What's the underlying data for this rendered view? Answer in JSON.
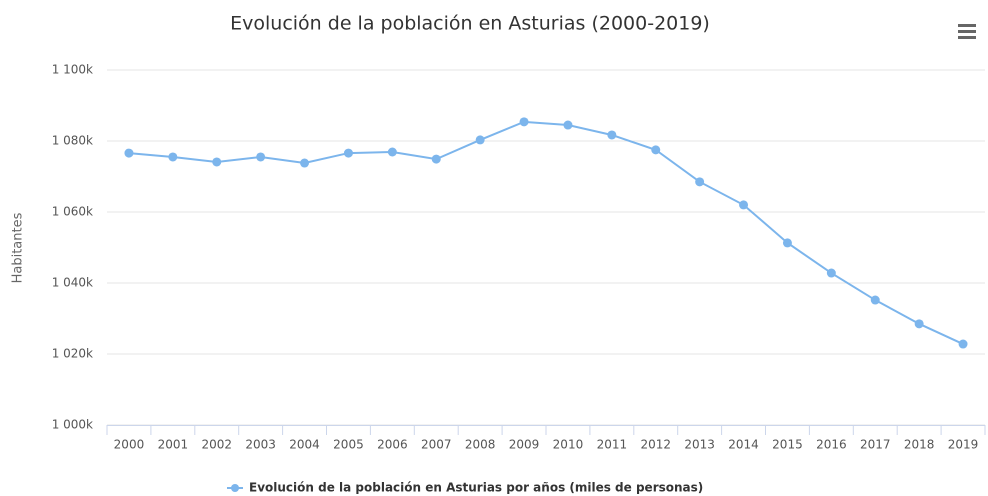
{
  "chart_data": {
    "type": "line",
    "title": "Evolución de la población en Asturias (2000-2019)",
    "y_label": "Habitantes",
    "categories": [
      "2000",
      "2001",
      "2002",
      "2003",
      "2004",
      "2005",
      "2006",
      "2007",
      "2008",
      "2009",
      "2010",
      "2011",
      "2012",
      "2013",
      "2014",
      "2015",
      "2016",
      "2017",
      "2018",
      "2019"
    ],
    "series": [
      {
        "name": "Evolución de la población en Asturias por años (miles de personas)",
        "color": "#7cb5ec",
        "values": [
          1076600,
          1075500,
          1074100,
          1075500,
          1073800,
          1076600,
          1076900,
          1074900,
          1080300,
          1085400,
          1084500,
          1081700,
          1077500,
          1068500,
          1062000,
          1051300,
          1042800,
          1035200,
          1028500,
          1022800
        ]
      }
    ],
    "ylim": [
      1000000,
      1100000
    ],
    "yticks": [
      {
        "value": 1000000,
        "label": "1 000k"
      },
      {
        "value": 1020000,
        "label": "1 020k"
      },
      {
        "value": 1040000,
        "label": "1 040k"
      },
      {
        "value": 1060000,
        "label": "1 060k"
      },
      {
        "value": 1080000,
        "label": "1 080k"
      },
      {
        "value": 1100000,
        "label": "1 100k"
      }
    ],
    "grid": true,
    "legend": "bottom"
  }
}
